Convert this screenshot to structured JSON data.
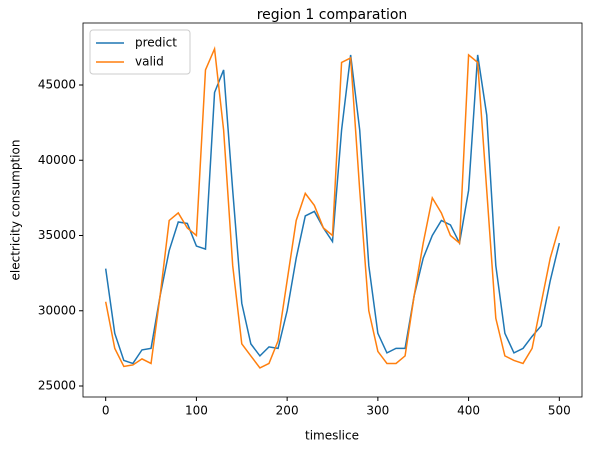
{
  "chart_data": {
    "type": "line",
    "title": "region 1 comparation",
    "xlabel": "timeslice",
    "ylabel": "electricity consumption",
    "x": [
      0,
      10,
      20,
      30,
      40,
      50,
      60,
      70,
      80,
      90,
      100,
      110,
      120,
      130,
      140,
      150,
      160,
      170,
      180,
      190,
      200,
      210,
      220,
      230,
      240,
      250,
      260,
      270,
      280,
      290,
      300,
      310,
      320,
      330,
      340,
      350,
      360,
      370,
      380,
      390,
      400,
      410,
      420,
      430,
      440,
      450,
      460,
      470,
      480,
      490,
      500
    ],
    "series": [
      {
        "name": "predict",
        "color": "#1f77b4",
        "values": [
          32800,
          28500,
          26700,
          26500,
          27400,
          27500,
          31000,
          34000,
          35900,
          35800,
          34300,
          34100,
          44500,
          46000,
          38000,
          30500,
          27800,
          27000,
          27600,
          27500,
          30000,
          33500,
          36300,
          36600,
          35500,
          34600,
          42000,
          47000,
          42000,
          33000,
          28500,
          27200,
          27500,
          27500,
          31000,
          33500,
          35000,
          36000,
          35700,
          34500,
          38000,
          47000,
          43000,
          33000,
          28500,
          27200,
          27500,
          28300,
          29000,
          32000,
          34500
        ]
      },
      {
        "name": "valid",
        "color": "#ff7f0e",
        "values": [
          30600,
          27500,
          26300,
          26400,
          26800,
          26500,
          31000,
          36000,
          36500,
          35500,
          35000,
          46000,
          47400,
          42000,
          33000,
          27800,
          27000,
          26200,
          26500,
          28000,
          32000,
          36000,
          37800,
          37000,
          35500,
          35000,
          46500,
          46800,
          38000,
          30000,
          27300,
          26500,
          26500,
          27000,
          31000,
          34500,
          37500,
          36500,
          35000,
          34500,
          47000,
          46500,
          38000,
          29500,
          27000,
          26700,
          26500,
          27500,
          30500,
          33500,
          35600
        ]
      }
    ],
    "xlim": [
      -25,
      525
    ],
    "ylim": [
      24270,
      49120
    ],
    "xticks": [
      0,
      100,
      200,
      300,
      400,
      500
    ],
    "yticks": [
      25000,
      30000,
      35000,
      40000,
      45000
    ],
    "grid": false,
    "legend": "upper-left"
  }
}
